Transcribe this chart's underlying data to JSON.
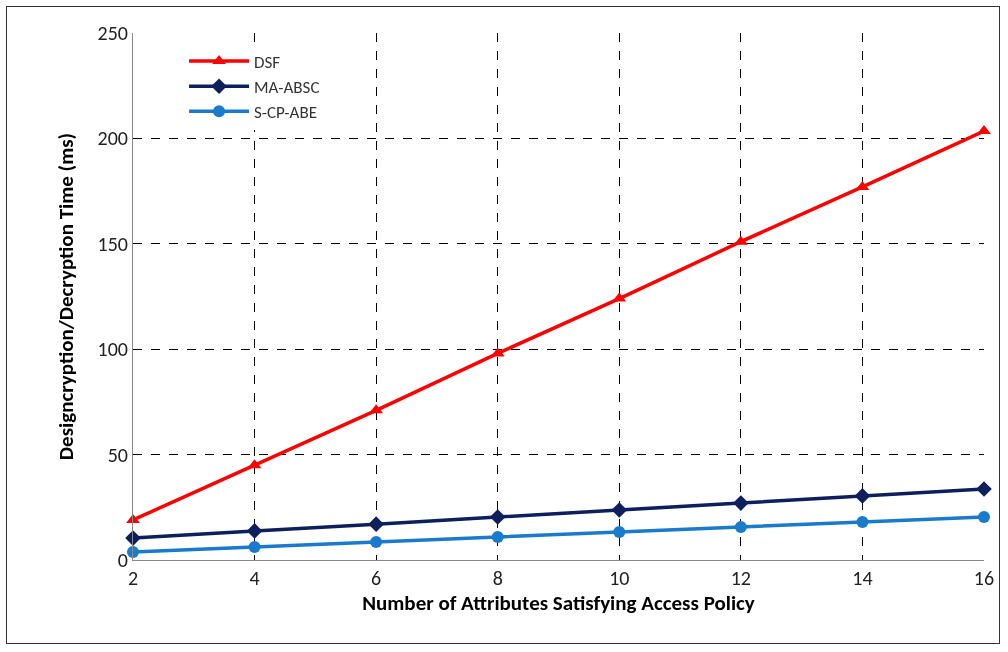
{
  "chart_data": {
    "type": "line",
    "xlabel": "Number of Attributes Satisfying Access Policy",
    "ylabel": "Designcryption/Decryption Time (ms)",
    "x": [
      2,
      4,
      6,
      8,
      10,
      12,
      14,
      16
    ],
    "series": [
      {
        "name": "DSF",
        "color": "#ff0000",
        "marker": "triangle",
        "values": [
          19,
          45,
          71,
          98,
          124,
          151,
          177,
          203.5
        ]
      },
      {
        "name": "MA-ABSC",
        "color": "#0d1f5c",
        "marker": "diamond",
        "values": [
          10.4,
          13.8,
          17,
          20.4,
          23.7,
          27,
          30.4,
          33.7
        ]
      },
      {
        "name": "S-CP-ABE",
        "color": "#1a7acb",
        "marker": "circle",
        "values": [
          3.8,
          6.2,
          8.5,
          10.9,
          13.3,
          15.7,
          18,
          20.4
        ]
      }
    ],
    "xlim": [
      2,
      16
    ],
    "xticks": [
      2,
      4,
      6,
      8,
      10,
      12,
      14,
      16
    ],
    "ylim": [
      0,
      250
    ],
    "yticks": [
      0,
      50,
      100,
      150,
      200,
      250
    ],
    "grid": true,
    "legend": "top left",
    "line_style": "solid"
  }
}
